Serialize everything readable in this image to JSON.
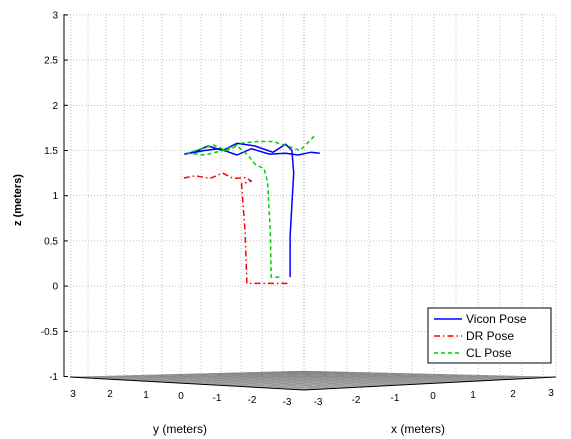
{
  "chart_data": {
    "type": "line",
    "projection": "3d",
    "title": "",
    "zlabel": "z (meters)",
    "ylabel": "y (meters)",
    "xlabel": "x (meters)",
    "zlim": [
      -1,
      3
    ],
    "z_ticks": [
      "-1",
      "-0.5",
      "0",
      "0.5",
      "1",
      "1.5",
      "2",
      "2.5",
      "3"
    ],
    "y_ticks": [
      "3",
      "2",
      "1",
      "0",
      "-1",
      "-2",
      "-3"
    ],
    "x_ticks": [
      "-3",
      "-2",
      "-1",
      "0",
      "1",
      "2",
      "3"
    ],
    "grid": true,
    "legend": {
      "placement": "bottom-right",
      "entries": [
        {
          "name": "Vicon Pose",
          "color": "#0000ff",
          "style": "solid"
        },
        {
          "name": "DR Pose",
          "color": "#ff0000",
          "style": "dash-dot"
        },
        {
          "name": "CL Pose",
          "color": "#00cc00",
          "style": "dashed"
        }
      ]
    },
    "series": [
      {
        "name": "Vicon Pose",
        "color": "#0000ff",
        "dash": "solid",
        "points": [
          {
            "h": -1.05,
            "z": 0.1
          },
          {
            "h": -1.05,
            "z": 0.55
          },
          {
            "h": -0.95,
            "z": 0.9
          },
          {
            "h": -0.85,
            "z": 1.25
          },
          {
            "h": -0.95,
            "z": 1.5
          },
          {
            "h": -1.3,
            "z": 1.57
          },
          {
            "h": -2.0,
            "z": 1.48
          },
          {
            "h": -3.0,
            "z": 1.55
          },
          {
            "h": -4.0,
            "z": 1.58
          },
          {
            "h": -4.8,
            "z": 1.5
          },
          {
            "h": -5.6,
            "z": 1.55
          },
          {
            "h": -6.3,
            "z": 1.49
          },
          {
            "h": -6.9,
            "z": 1.46
          },
          {
            "h": -5.8,
            "z": 1.5
          },
          {
            "h": -5.0,
            "z": 1.52
          },
          {
            "h": -4.0,
            "z": 1.45
          },
          {
            "h": -3.2,
            "z": 1.52
          },
          {
            "h": -2.2,
            "z": 1.46
          },
          {
            "h": -1.3,
            "z": 1.47
          },
          {
            "h": -0.6,
            "z": 1.45
          },
          {
            "h": 0.1,
            "z": 1.48
          },
          {
            "h": 0.6,
            "z": 1.47
          }
        ]
      },
      {
        "name": "DR Pose",
        "color": "#ff0000",
        "dash": "6,3,1.5,3",
        "points": [
          {
            "h": -1.2,
            "z": 0.03
          },
          {
            "h": -2.35,
            "z": 0.03
          },
          {
            "h": -3.45,
            "z": 0.03
          },
          {
            "h": -3.55,
            "z": 0.6
          },
          {
            "h": -3.75,
            "z": 1.13
          },
          {
            "h": -3.2,
            "z": 1.16
          },
          {
            "h": -3.5,
            "z": 1.2
          },
          {
            "h": -4.2,
            "z": 1.19
          },
          {
            "h": -4.8,
            "z": 1.25
          },
          {
            "h": -5.5,
            "z": 1.19
          },
          {
            "h": -6.3,
            "z": 1.22
          },
          {
            "h": -7.1,
            "z": 1.19
          }
        ]
      },
      {
        "name": "CL Pose",
        "color": "#00cc00",
        "dash": "4,3",
        "points": [
          {
            "h": -1.65,
            "z": 0.1
          },
          {
            "h": -2.1,
            "z": 0.1
          },
          {
            "h": -2.15,
            "z": 0.6
          },
          {
            "h": -2.3,
            "z": 1.15
          },
          {
            "h": -2.5,
            "z": 1.3
          },
          {
            "h": -3.0,
            "z": 1.35
          },
          {
            "h": -3.4,
            "z": 1.45
          },
          {
            "h": -4.0,
            "z": 1.55
          },
          {
            "h": -4.6,
            "z": 1.5
          },
          {
            "h": -5.3,
            "z": 1.56
          },
          {
            "h": -6.0,
            "z": 1.52
          },
          {
            "h": -6.7,
            "z": 1.47
          },
          {
            "h": -5.8,
            "z": 1.45
          },
          {
            "h": -4.8,
            "z": 1.5
          },
          {
            "h": -3.8,
            "z": 1.58
          },
          {
            "h": -2.9,
            "z": 1.6
          },
          {
            "h": -2.0,
            "z": 1.6
          },
          {
            "h": -1.2,
            "z": 1.55
          },
          {
            "h": -0.5,
            "z": 1.5
          },
          {
            "h": 0.0,
            "z": 1.6
          },
          {
            "h": 0.3,
            "z": 1.66
          }
        ]
      }
    ]
  }
}
